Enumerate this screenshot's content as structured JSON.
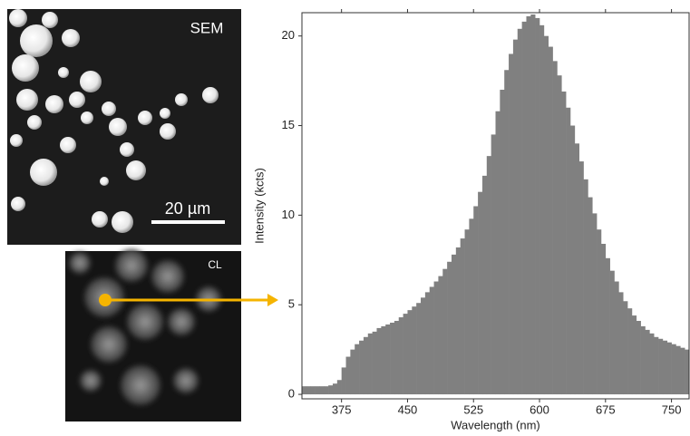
{
  "panels": {
    "sem_label": "SEM",
    "scale_bar": "20 µm",
    "cl_label": "CL"
  },
  "chart_data": {
    "type": "bar",
    "xlabel": "Wavelength (nm)",
    "ylabel": "Intensity (kcts)",
    "color": "#808080",
    "xlim": [
      330,
      770
    ],
    "ylim": [
      -0.25,
      21.3
    ],
    "xticks": [
      375,
      450,
      525,
      600,
      675,
      750
    ],
    "yticks": [
      0,
      5,
      10,
      15,
      20
    ],
    "x": [
      330,
      335,
      340,
      345,
      350,
      355,
      360,
      365,
      370,
      375,
      380,
      385,
      390,
      395,
      400,
      405,
      410,
      415,
      420,
      425,
      430,
      435,
      440,
      445,
      450,
      455,
      460,
      465,
      470,
      475,
      480,
      485,
      490,
      495,
      500,
      505,
      510,
      515,
      520,
      525,
      530,
      535,
      540,
      545,
      550,
      555,
      560,
      565,
      570,
      575,
      580,
      585,
      590,
      595,
      600,
      605,
      610,
      615,
      620,
      625,
      630,
      635,
      640,
      645,
      650,
      655,
      660,
      665,
      670,
      675,
      680,
      685,
      690,
      695,
      700,
      705,
      710,
      715,
      720,
      725,
      730,
      735,
      740,
      745,
      750,
      755,
      760,
      765
    ],
    "values": [
      0.45,
      0.45,
      0.45,
      0.45,
      0.45,
      0.45,
      0.5,
      0.6,
      0.8,
      1.5,
      2.1,
      2.5,
      2.8,
      3.0,
      3.2,
      3.4,
      3.5,
      3.7,
      3.8,
      3.9,
      4.0,
      4.1,
      4.3,
      4.5,
      4.7,
      4.9,
      5.1,
      5.4,
      5.7,
      6.0,
      6.3,
      6.6,
      7.0,
      7.4,
      7.8,
      8.2,
      8.7,
      9.2,
      9.8,
      10.5,
      11.3,
      12.2,
      13.3,
      14.5,
      15.8,
      17.0,
      18.1,
      19.0,
      19.8,
      20.4,
      20.8,
      21.1,
      21.2,
      21.0,
      20.6,
      20.0,
      19.4,
      18.6,
      17.8,
      16.9,
      16.0,
      15.0,
      14.0,
      13.0,
      12.0,
      11.0,
      10.1,
      9.2,
      8.4,
      7.6,
      6.9,
      6.3,
      5.7,
      5.2,
      4.8,
      4.4,
      4.1,
      3.8,
      3.6,
      3.4,
      3.2,
      3.1,
      3.0,
      2.9,
      2.8,
      2.7,
      2.6,
      2.5
    ]
  }
}
